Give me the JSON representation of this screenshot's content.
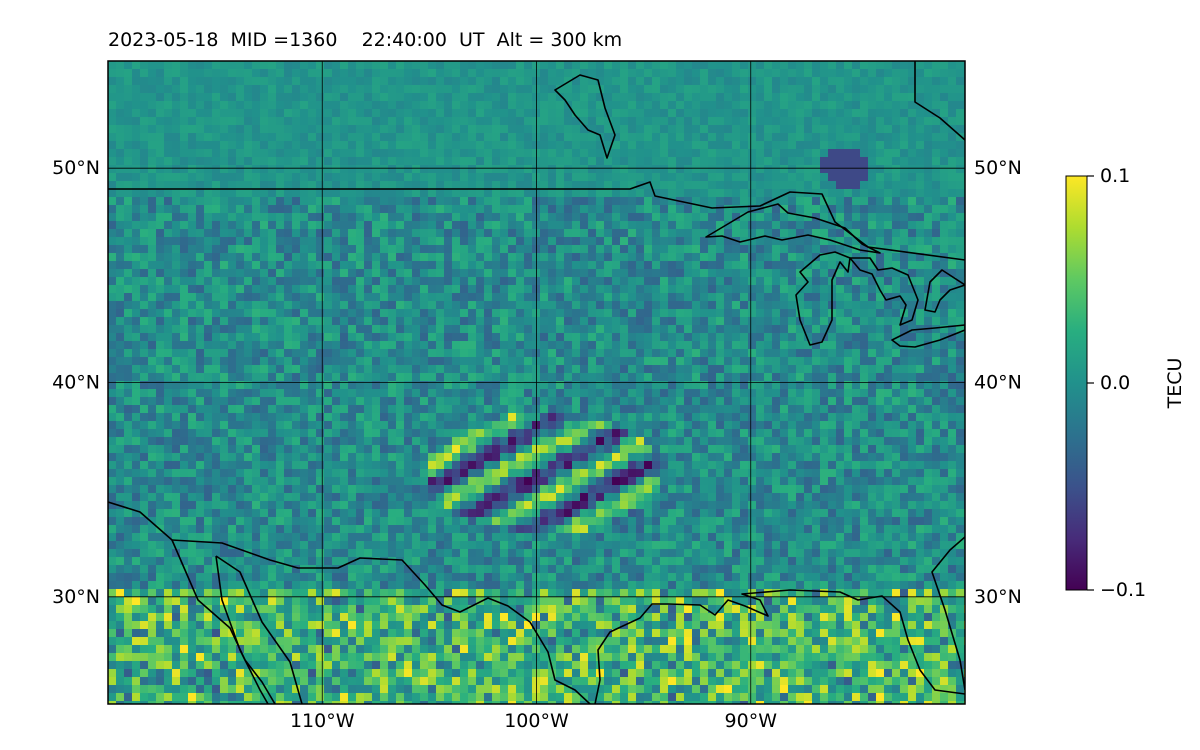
{
  "title": "2023-05-18  MID =1360    22:40:00  UT  Alt = 300 km",
  "map": {
    "extent": {
      "lon_min": -120,
      "lon_max": -80,
      "lat_min": 25,
      "lat_max": 55
    },
    "lat_ticks": [
      {
        "value": 50,
        "label": "50°N"
      },
      {
        "value": 40,
        "label": "40°N"
      },
      {
        "value": 30,
        "label": "30°N"
      }
    ],
    "lon_ticks": [
      {
        "value": -110,
        "label": "110°W"
      },
      {
        "value": -100,
        "label": "100°W"
      },
      {
        "value": -90,
        "label": "90°W"
      }
    ],
    "colormap": "viridis"
  },
  "colorbar": {
    "label": "TECU",
    "min": -0.1,
    "max": 0.1,
    "ticks": [
      {
        "value": 0.1,
        "label": "0.1"
      },
      {
        "value": 0.0,
        "label": "0.0"
      },
      {
        "value": -0.1,
        "label": "−0.1"
      }
    ]
  }
}
